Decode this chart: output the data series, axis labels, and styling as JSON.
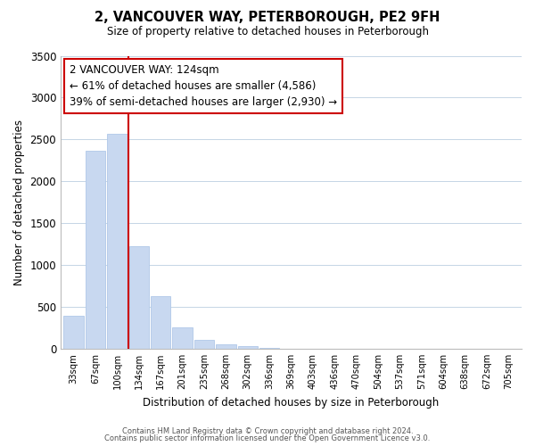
{
  "title": "2, VANCOUVER WAY, PETERBOROUGH, PE2 9FH",
  "subtitle": "Size of property relative to detached houses in Peterborough",
  "xlabel": "Distribution of detached houses by size in Peterborough",
  "ylabel": "Number of detached properties",
  "bar_color": "#c8d8f0",
  "bar_edge_color": "#b0c8e8",
  "vline_color": "#cc0000",
  "vline_x": 2.5,
  "categories": [
    "33sqm",
    "67sqm",
    "100sqm",
    "134sqm",
    "167sqm",
    "201sqm",
    "235sqm",
    "268sqm",
    "302sqm",
    "336sqm",
    "369sqm",
    "403sqm",
    "436sqm",
    "470sqm",
    "504sqm",
    "537sqm",
    "571sqm",
    "604sqm",
    "638sqm",
    "672sqm",
    "705sqm"
  ],
  "values": [
    390,
    2360,
    2570,
    1230,
    630,
    255,
    105,
    55,
    28,
    5,
    2,
    0,
    0,
    0,
    0,
    0,
    0,
    0,
    0,
    0,
    0
  ],
  "ylim": [
    0,
    3500
  ],
  "yticks": [
    0,
    500,
    1000,
    1500,
    2000,
    2500,
    3000,
    3500
  ],
  "annotation_title": "2 VANCOUVER WAY: 124sqm",
  "annotation_line1": "← 61% of detached houses are smaller (4,586)",
  "annotation_line2": "39% of semi-detached houses are larger (2,930) →",
  "footer1": "Contains HM Land Registry data © Crown copyright and database right 2024.",
  "footer2": "Contains public sector information licensed under the Open Government Licence v3.0.",
  "background_color": "#ffffff",
  "grid_color": "#c5d5e5"
}
